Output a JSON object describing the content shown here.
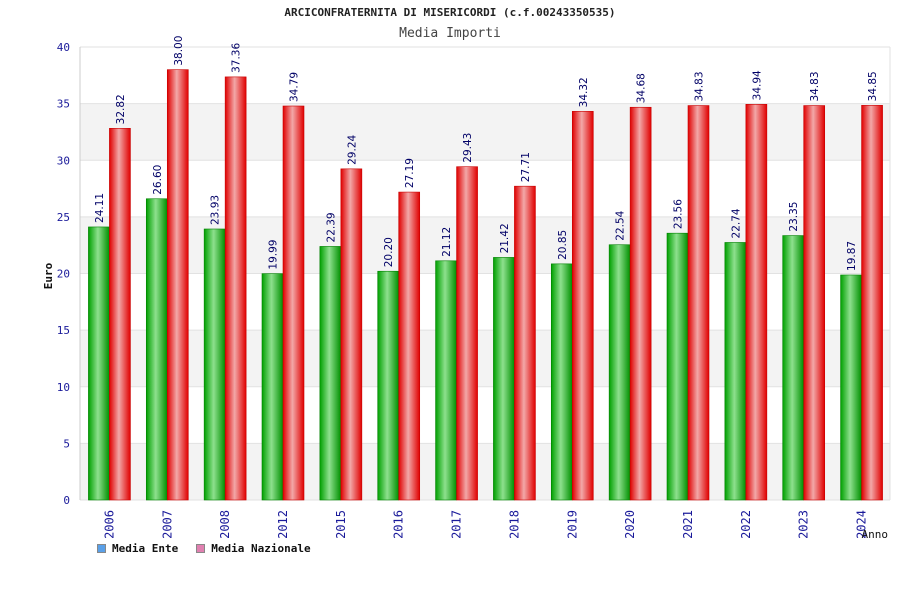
{
  "chart_data": {
    "type": "bar",
    "title": "ARCICONFRATERNITA DI MISERICORDI (c.f.00243350535)",
    "subtitle": "Media Importi",
    "xlabel": "Anno",
    "ylabel": "Euro",
    "ylim": [
      0,
      40
    ],
    "yticks": [
      0,
      5,
      10,
      15,
      20,
      25,
      30,
      35,
      40
    ],
    "grid": true,
    "legend_position": "bottom-left",
    "categories": [
      "2006",
      "2007",
      "2008",
      "2012",
      "2015",
      "2016",
      "2017",
      "2018",
      "2019",
      "2020",
      "2021",
      "2022",
      "2023",
      "2024"
    ],
    "series": [
      {
        "name": "Media Ente",
        "color": "#00a000",
        "values": [
          24.11,
          26.6,
          23.93,
          19.99,
          22.39,
          20.2,
          21.12,
          21.42,
          20.85,
          22.54,
          23.56,
          22.74,
          23.35,
          19.87
        ],
        "labels": [
          "24.11",
          "26.60",
          "23.93",
          "19.99",
          "22.39",
          "20.20",
          "21.12",
          "21.42",
          "20.85",
          "22.54",
          "23.56",
          "22.74",
          "23.35",
          "19.87"
        ]
      },
      {
        "name": "Media Nazionale",
        "color": "#ee1111",
        "values": [
          32.82,
          38.0,
          37.36,
          34.79,
          29.24,
          27.19,
          29.43,
          27.71,
          34.32,
          34.68,
          34.83,
          34.94,
          34.83,
          34.85
        ],
        "labels": [
          "32.82",
          "38.00",
          "37.36",
          "34.79",
          "29.24",
          "27.19",
          "29.43",
          "27.71",
          "34.32",
          "34.68",
          "34.83",
          "34.94",
          "34.83",
          "34.85"
        ]
      }
    ],
    "legend": [
      {
        "label": "Media Ente",
        "color": "#5aa0e8"
      },
      {
        "label": "Media Nazionale",
        "color": "#e080b0"
      }
    ]
  }
}
